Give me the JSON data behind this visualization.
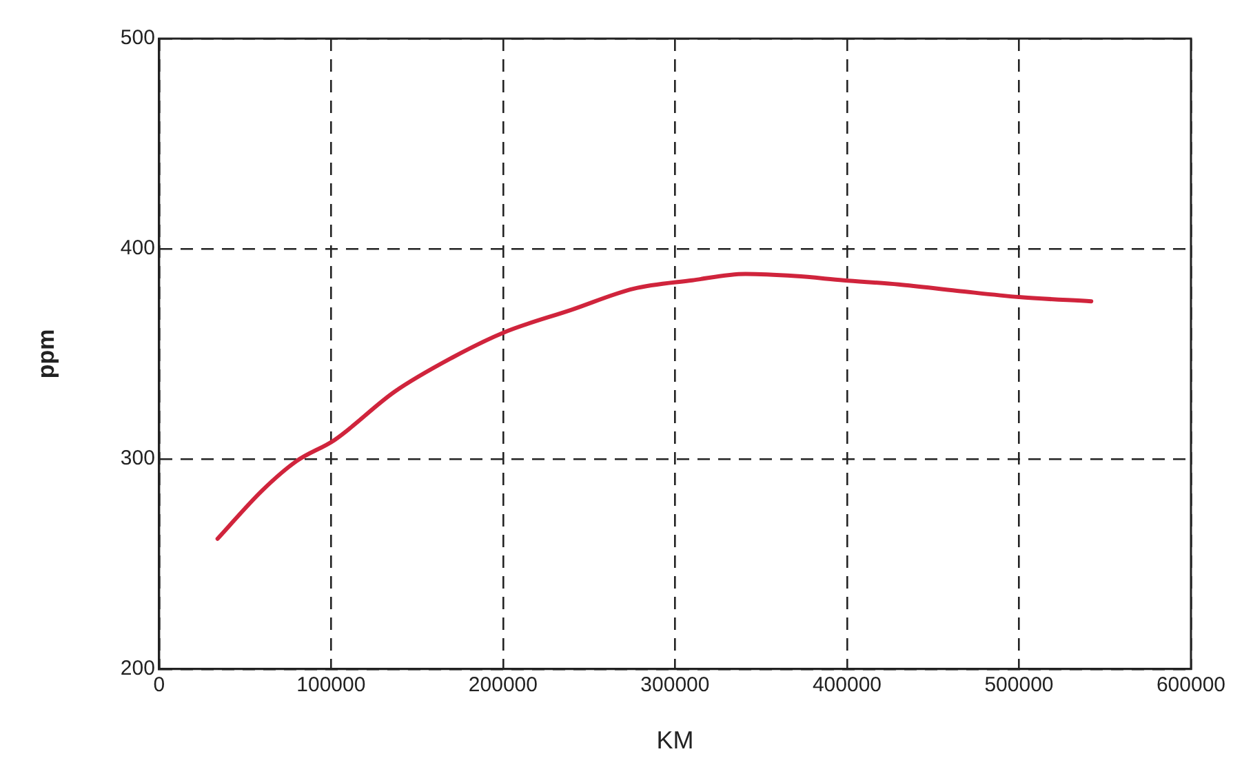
{
  "chart_data": {
    "type": "line",
    "xlabel": "KM",
    "ylabel": "ppm",
    "x": [
      34000,
      60000,
      80000,
      102000,
      137000,
      170000,
      200000,
      240000,
      276000,
      310000,
      341000,
      370000,
      398000,
      430000,
      464000,
      500000,
      542000
    ],
    "series": [
      {
        "color": "#d0243c",
        "values": [
          262,
          285,
          299,
          309,
          332,
          348,
          360,
          371,
          381,
          385,
          388,
          387,
          385,
          383,
          380,
          377,
          375
        ]
      }
    ],
    "xlim": [
      0,
      600000
    ],
    "xticks": [
      0,
      100000,
      200000,
      300000,
      400000,
      500000,
      600000
    ],
    "ylim": [
      200,
      500
    ],
    "yticks": [
      200,
      300,
      400,
      500
    ],
    "grid": true,
    "legend": false,
    "marker": "none",
    "line_style": "solid"
  }
}
